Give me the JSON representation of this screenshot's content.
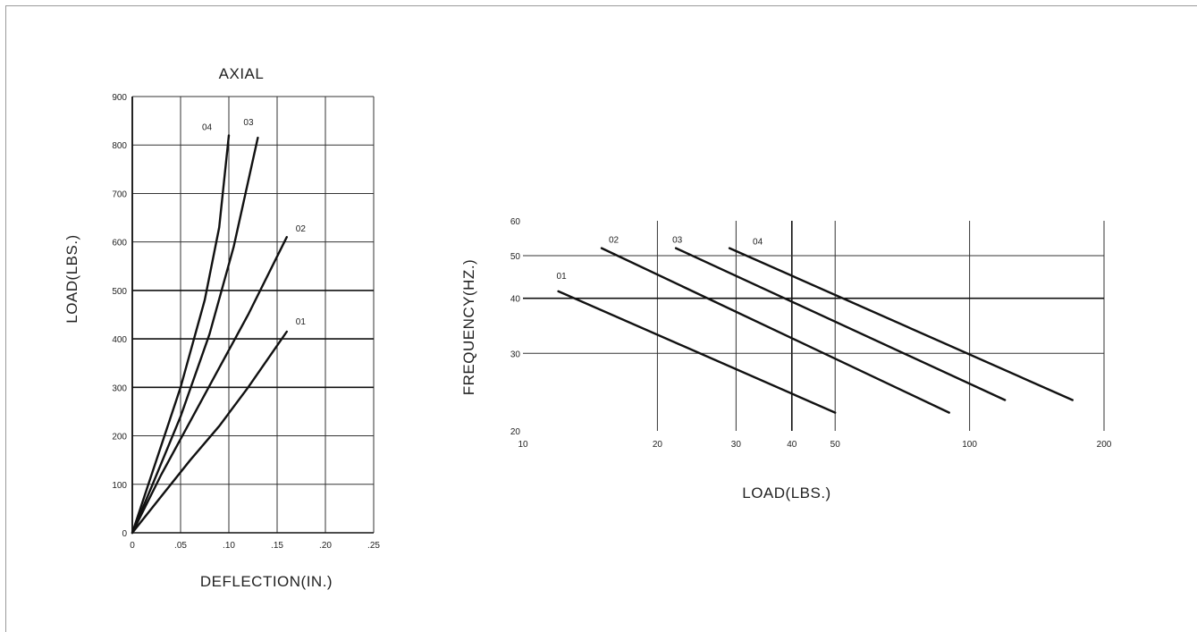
{
  "chart_data": [
    {
      "type": "line",
      "title": "AXIAL",
      "xlabel": "DEFLECTION(IN.)",
      "ylabel": "LOAD(LBS.)",
      "xlim": [
        0,
        0.25
      ],
      "ylim": [
        0,
        900
      ],
      "x_ticks": [
        "0",
        ".05",
        ".10",
        ".15",
        ".20",
        ".25"
      ],
      "y_ticks": [
        "0",
        "100",
        "200",
        "300",
        "400",
        "500",
        "600",
        "700",
        "800",
        "900"
      ],
      "grid": true,
      "series": [
        {
          "name": "04",
          "points": [
            [
              0,
              0
            ],
            [
              0.02,
              120
            ],
            [
              0.05,
              300
            ],
            [
              0.075,
              480
            ],
            [
              0.09,
              630
            ],
            [
              0.1,
              820
            ]
          ]
        },
        {
          "name": "03",
          "points": [
            [
              0,
              0
            ],
            [
              0.02,
              95
            ],
            [
              0.05,
              240
            ],
            [
              0.08,
              410
            ],
            [
              0.105,
              590
            ],
            [
              0.13,
              815
            ]
          ]
        },
        {
          "name": "02",
          "points": [
            [
              0,
              0
            ],
            [
              0.03,
              120
            ],
            [
              0.06,
              230
            ],
            [
              0.09,
              340
            ],
            [
              0.12,
              450
            ],
            [
              0.16,
              610
            ]
          ]
        },
        {
          "name": "01",
          "points": [
            [
              0,
              0
            ],
            [
              0.03,
              75
            ],
            [
              0.06,
              150
            ],
            [
              0.09,
              220
            ],
            [
              0.12,
              300
            ],
            [
              0.16,
              415
            ]
          ]
        }
      ]
    },
    {
      "type": "line",
      "xlabel": "LOAD(LBS.)",
      "ylabel": "FREQUENCY(HZ.)",
      "x_scale": "log",
      "y_scale": "log",
      "xlim": [
        10,
        200
      ],
      "ylim": [
        20,
        60
      ],
      "x_ticks": [
        "10",
        "20",
        "30",
        "40",
        "50",
        "100",
        "200"
      ],
      "y_ticks": [
        "20",
        "30",
        "40",
        "50",
        "60"
      ],
      "grid": true,
      "series": [
        {
          "name": "01",
          "points": [
            [
              12,
              41.5
            ],
            [
              50,
              22
            ]
          ]
        },
        {
          "name": "02",
          "points": [
            [
              15,
              52
            ],
            [
              90,
              22
            ]
          ]
        },
        {
          "name": "03",
          "points": [
            [
              22,
              52
            ],
            [
              120,
              23.5
            ]
          ]
        },
        {
          "name": "04",
          "points": [
            [
              29,
              52
            ],
            [
              170,
              23.5
            ]
          ]
        }
      ]
    }
  ]
}
